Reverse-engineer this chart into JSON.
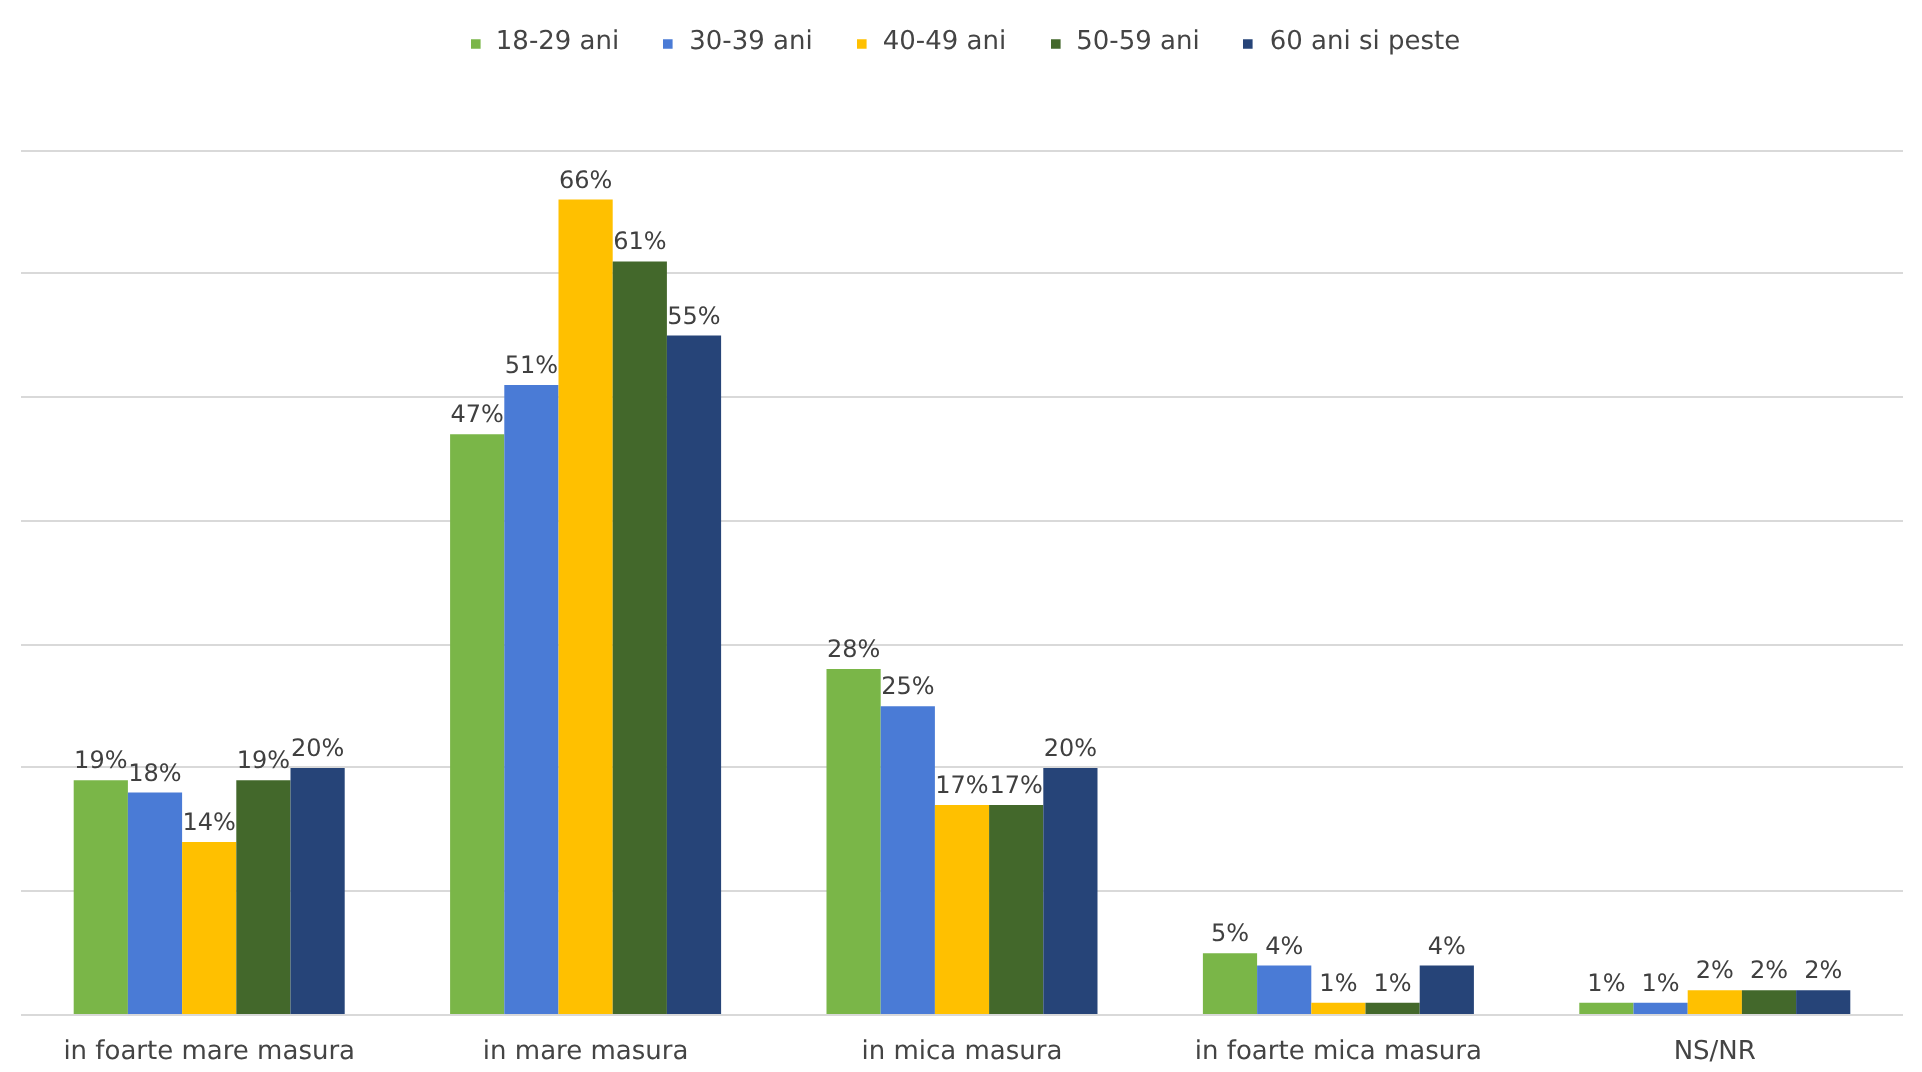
{
  "chart_data": {
    "type": "bar",
    "categories": [
      "in foarte mare masura",
      "in mare masura",
      "in mica masura",
      "in foarte mica masura",
      "NS/NR"
    ],
    "series": [
      {
        "name": "18-29 ani",
        "color": "#7ab648",
        "values": [
          19,
          47,
          28,
          5,
          1
        ],
        "value_labels": [
          "19%",
          "47%",
          "28%",
          "5%",
          "1%"
        ]
      },
      {
        "name": "30-39 ani",
        "color": "#4a7bd6",
        "values": [
          18,
          51,
          25,
          4,
          1
        ],
        "value_labels": [
          "18%",
          "51%",
          "25%",
          "4%",
          "1%"
        ]
      },
      {
        "name": "40-49 ani",
        "color": "#ffc000",
        "values": [
          14,
          66,
          17,
          1,
          2
        ],
        "value_labels": [
          "14%",
          "66%",
          "17%",
          "1%",
          "2%"
        ]
      },
      {
        "name": "50-59 ani",
        "color": "#43682b",
        "values": [
          19,
          61,
          17,
          1,
          2
        ],
        "value_labels": [
          "19%",
          "61%",
          "17%",
          "1%",
          "2%"
        ]
      },
      {
        "name": "60 ani si peste",
        "color": "#264478",
        "values": [
          20,
          55,
          20,
          4,
          2
        ],
        "value_labels": [
          "20%",
          "55%",
          "20%",
          "4%",
          "2%"
        ]
      }
    ],
    "yticks": [
      {
        "value": 0,
        "label": null
      },
      {
        "value": 10,
        "label": null
      },
      {
        "value": 20,
        "label": null
      },
      {
        "value": 30,
        "label": null
      },
      {
        "value": 40,
        "label": null
      },
      {
        "value": 50,
        "label": null
      },
      {
        "value": 60,
        "label": null
      },
      {
        "value": 70,
        "label": null
      }
    ],
    "tick_labels": "x",
    "grid": "y",
    "legend": "top"
  }
}
